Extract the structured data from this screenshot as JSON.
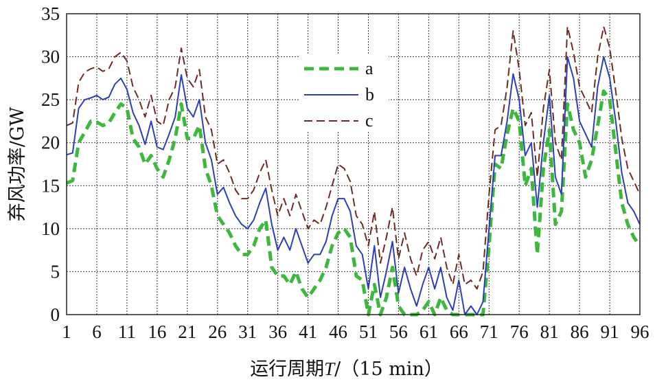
{
  "chart_data": {
    "type": "line",
    "xlabel_prefix": "运行周期",
    "xlabel_var": "T",
    "xlabel_suffix": "/（15 min）",
    "ylabel": "弃风功率/GW",
    "xlim": [
      1,
      96
    ],
    "ylim": [
      0,
      35
    ],
    "x_ticks": [
      1,
      6,
      11,
      16,
      21,
      26,
      31,
      36,
      41,
      46,
      51,
      56,
      61,
      66,
      71,
      76,
      81,
      86,
      91,
      96
    ],
    "y_ticks": [
      0,
      5,
      10,
      15,
      20,
      25,
      30,
      35
    ],
    "grid": true,
    "legend_position": "top-center",
    "series": [
      {
        "name": "a",
        "color": "#3cb83c",
        "style": "dashed-thick",
        "points": [
          [
            1,
            15.3
          ],
          [
            2,
            15.6
          ],
          [
            3,
            20.0
          ],
          [
            4,
            21.2
          ],
          [
            5,
            22.5
          ],
          [
            6,
            22.4
          ],
          [
            7,
            22.0
          ],
          [
            8,
            22.3
          ],
          [
            9,
            23.5
          ],
          [
            10,
            24.5
          ],
          [
            11,
            24.0
          ],
          [
            12,
            20.5
          ],
          [
            13,
            19.5
          ],
          [
            14,
            17.5
          ],
          [
            15,
            18.5
          ],
          [
            16,
            17.0
          ],
          [
            17,
            16.0
          ],
          [
            18,
            18.0
          ],
          [
            19,
            20.5
          ],
          [
            20,
            24.5
          ],
          [
            21,
            20.5
          ],
          [
            22,
            20.5
          ],
          [
            23,
            22.0
          ],
          [
            24,
            17.0
          ],
          [
            25,
            15.0
          ],
          [
            26,
            11.5
          ],
          [
            27,
            10.5
          ],
          [
            28,
            9.5
          ],
          [
            29,
            8.0
          ],
          [
            30,
            7.0
          ],
          [
            31,
            7.0
          ],
          [
            32,
            8.0
          ],
          [
            33,
            10.0
          ],
          [
            34,
            11.0
          ],
          [
            35,
            5.5
          ],
          [
            36,
            4.5
          ],
          [
            37,
            4.5
          ],
          [
            38,
            3.5
          ],
          [
            39,
            5.0
          ],
          [
            40,
            3.0
          ],
          [
            41,
            2.0
          ],
          [
            42,
            3.0
          ],
          [
            43,
            4.0
          ],
          [
            44,
            5.5
          ],
          [
            45,
            8.0
          ],
          [
            46,
            9.5
          ],
          [
            47,
            10.0
          ],
          [
            48,
            9.0
          ],
          [
            49,
            4.5
          ],
          [
            50,
            4.0
          ],
          [
            51,
            0.0
          ],
          [
            52,
            3.5
          ],
          [
            53,
            0.0
          ],
          [
            54,
            2.0
          ],
          [
            55,
            5.5
          ],
          [
            56,
            1.0
          ],
          [
            57,
            0.0
          ],
          [
            58,
            0.0
          ],
          [
            59,
            0.0
          ],
          [
            60,
            0.5
          ],
          [
            61,
            1.5
          ],
          [
            62,
            0.0
          ],
          [
            63,
            2.0
          ],
          [
            64,
            0.5
          ],
          [
            65,
            0.0
          ],
          [
            66,
            0.0
          ],
          [
            67,
            0.0
          ],
          [
            68,
            0.0
          ],
          [
            69,
            0.0
          ],
          [
            70,
            0.0
          ],
          [
            71,
            8.0
          ],
          [
            72,
            17.5
          ],
          [
            73,
            17.0
          ],
          [
            74,
            21.0
          ],
          [
            75,
            24.0
          ],
          [
            76,
            22.5
          ],
          [
            77,
            15.0
          ],
          [
            78,
            17.0
          ],
          [
            79,
            7.0
          ],
          [
            80,
            17.0
          ],
          [
            81,
            21.5
          ],
          [
            82,
            10.5
          ],
          [
            83,
            12.0
          ],
          [
            84,
            24.5
          ],
          [
            85,
            21.5
          ],
          [
            86,
            20.0
          ],
          [
            87,
            16.0
          ],
          [
            88,
            18.0
          ],
          [
            89,
            22.0
          ],
          [
            90,
            26.0
          ],
          [
            91,
            25.0
          ],
          [
            92,
            19.0
          ],
          [
            93,
            13.0
          ],
          [
            94,
            10.5
          ],
          [
            95,
            9.0
          ],
          [
            96,
            8.0
          ]
        ]
      },
      {
        "name": "b",
        "color": "#2b3dbb",
        "style": "solid",
        "points": [
          [
            1,
            18.6
          ],
          [
            2,
            18.8
          ],
          [
            3,
            24.0
          ],
          [
            4,
            25.0
          ],
          [
            5,
            25.2
          ],
          [
            6,
            25.5
          ],
          [
            7,
            25.0
          ],
          [
            8,
            25.3
          ],
          [
            9,
            26.8
          ],
          [
            10,
            27.5
          ],
          [
            11,
            26.2
          ],
          [
            12,
            23.5
          ],
          [
            13,
            22.0
          ],
          [
            14,
            19.8
          ],
          [
            15,
            22.5
          ],
          [
            16,
            19.5
          ],
          [
            17,
            19.2
          ],
          [
            18,
            21.0
          ],
          [
            19,
            23.0
          ],
          [
            20,
            27.9
          ],
          [
            21,
            24.0
          ],
          [
            22,
            23.0
          ],
          [
            23,
            25.0
          ],
          [
            24,
            20.0
          ],
          [
            25,
            18.0
          ],
          [
            26,
            14.0
          ],
          [
            27,
            14.8
          ],
          [
            28,
            13.0
          ],
          [
            29,
            11.5
          ],
          [
            30,
            10.5
          ],
          [
            31,
            10.0
          ],
          [
            32,
            11.0
          ],
          [
            33,
            13.0
          ],
          [
            34,
            14.7
          ],
          [
            35,
            10.5
          ],
          [
            36,
            7.5
          ],
          [
            37,
            9.0
          ],
          [
            38,
            7.5
          ],
          [
            39,
            10.0
          ],
          [
            40,
            8.0
          ],
          [
            41,
            6.0
          ],
          [
            42,
            7.0
          ],
          [
            43,
            7.0
          ],
          [
            44,
            8.5
          ],
          [
            45,
            11.5
          ],
          [
            46,
            13.5
          ],
          [
            47,
            13.5
          ],
          [
            48,
            12.0
          ],
          [
            49,
            8.0
          ],
          [
            50,
            7.0
          ],
          [
            51,
            3.0
          ],
          [
            52,
            8.0
          ],
          [
            53,
            2.0
          ],
          [
            54,
            5.0
          ],
          [
            55,
            8.5
          ],
          [
            56,
            2.5
          ],
          [
            57,
            5.5
          ],
          [
            58,
            3.0
          ],
          [
            59,
            1.0
          ],
          [
            60,
            3.5
          ],
          [
            61,
            5.5
          ],
          [
            62,
            3.0
          ],
          [
            63,
            5.5
          ],
          [
            64,
            2.0
          ],
          [
            65,
            0.5
          ],
          [
            66,
            4.0
          ],
          [
            67,
            0.0
          ],
          [
            68,
            1.0
          ],
          [
            69,
            0.0
          ],
          [
            70,
            1.5
          ],
          [
            71,
            10.0
          ],
          [
            72,
            18.5
          ],
          [
            73,
            18.5
          ],
          [
            74,
            22.5
          ],
          [
            75,
            28.0
          ],
          [
            76,
            25.0
          ],
          [
            77,
            18.5
          ],
          [
            78,
            20.0
          ],
          [
            79,
            12.5
          ],
          [
            80,
            20.0
          ],
          [
            81,
            25.5
          ],
          [
            82,
            16.0
          ],
          [
            83,
            14.0
          ],
          [
            84,
            30.0
          ],
          [
            85,
            27.5
          ],
          [
            86,
            22.5
          ],
          [
            87,
            21.0
          ],
          [
            88,
            19.5
          ],
          [
            89,
            26.5
          ],
          [
            90,
            30.0
          ],
          [
            91,
            27.5
          ],
          [
            92,
            22.5
          ],
          [
            93,
            16.5
          ],
          [
            94,
            13.0
          ],
          [
            95,
            12.0
          ],
          [
            96,
            10.5
          ]
        ]
      },
      {
        "name": "c",
        "color": "#6b2b22",
        "style": "dashed",
        "points": [
          [
            1,
            22.0
          ],
          [
            2,
            22.3
          ],
          [
            3,
            27.0
          ],
          [
            4,
            28.2
          ],
          [
            5,
            28.6
          ],
          [
            6,
            28.8
          ],
          [
            7,
            28.3
          ],
          [
            8,
            28.6
          ],
          [
            9,
            30.0
          ],
          [
            10,
            30.5
          ],
          [
            11,
            29.5
          ],
          [
            12,
            26.5
          ],
          [
            13,
            25.0
          ],
          [
            14,
            23.0
          ],
          [
            15,
            25.5
          ],
          [
            16,
            22.5
          ],
          [
            17,
            22.0
          ],
          [
            18,
            25.0
          ],
          [
            19,
            26.5
          ],
          [
            20,
            31.0
          ],
          [
            21,
            27.5
          ],
          [
            22,
            26.5
          ],
          [
            23,
            28.5
          ],
          [
            24,
            23.0
          ],
          [
            25,
            21.5
          ],
          [
            26,
            17.5
          ],
          [
            27,
            18.0
          ],
          [
            28,
            16.5
          ],
          [
            29,
            14.5
          ],
          [
            30,
            13.5
          ],
          [
            31,
            13.5
          ],
          [
            32,
            14.5
          ],
          [
            33,
            16.5
          ],
          [
            34,
            18.0
          ],
          [
            35,
            14.5
          ],
          [
            36,
            11.5
          ],
          [
            37,
            13.5
          ],
          [
            38,
            11.5
          ],
          [
            39,
            14.0
          ],
          [
            40,
            12.0
          ],
          [
            41,
            10.0
          ],
          [
            42,
            11.0
          ],
          [
            43,
            10.5
          ],
          [
            44,
            12.5
          ],
          [
            45,
            15.0
          ],
          [
            46,
            17.5
          ],
          [
            47,
            17.0
          ],
          [
            48,
            15.5
          ],
          [
            49,
            11.5
          ],
          [
            50,
            10.5
          ],
          [
            51,
            8.0
          ],
          [
            52,
            12.0
          ],
          [
            53,
            6.0
          ],
          [
            54,
            9.0
          ],
          [
            55,
            12.5
          ],
          [
            56,
            6.5
          ],
          [
            57,
            9.5
          ],
          [
            58,
            6.5
          ],
          [
            59,
            4.5
          ],
          [
            60,
            7.5
          ],
          [
            61,
            8.5
          ],
          [
            62,
            6.5
          ],
          [
            63,
            9.0
          ],
          [
            64,
            5.5
          ],
          [
            65,
            3.5
          ],
          [
            66,
            7.0
          ],
          [
            67,
            3.5
          ],
          [
            68,
            4.0
          ],
          [
            69,
            3.0
          ],
          [
            70,
            5.0
          ],
          [
            71,
            14.0
          ],
          [
            72,
            21.5
          ],
          [
            73,
            22.0
          ],
          [
            74,
            26.5
          ],
          [
            75,
            33.0
          ],
          [
            76,
            28.5
          ],
          [
            77,
            22.0
          ],
          [
            78,
            23.5
          ],
          [
            79,
            16.0
          ],
          [
            80,
            24.0
          ],
          [
            81,
            28.5
          ],
          [
            82,
            20.0
          ],
          [
            83,
            18.0
          ],
          [
            84,
            33.5
          ],
          [
            85,
            30.5
          ],
          [
            86,
            26.5
          ],
          [
            87,
            25.0
          ],
          [
            88,
            23.5
          ],
          [
            89,
            30.0
          ],
          [
            90,
            33.5
          ],
          [
            91,
            31.0
          ],
          [
            92,
            26.0
          ],
          [
            93,
            20.5
          ],
          [
            94,
            17.0
          ],
          [
            95,
            15.5
          ],
          [
            96,
            14.0
          ]
        ]
      }
    ]
  }
}
